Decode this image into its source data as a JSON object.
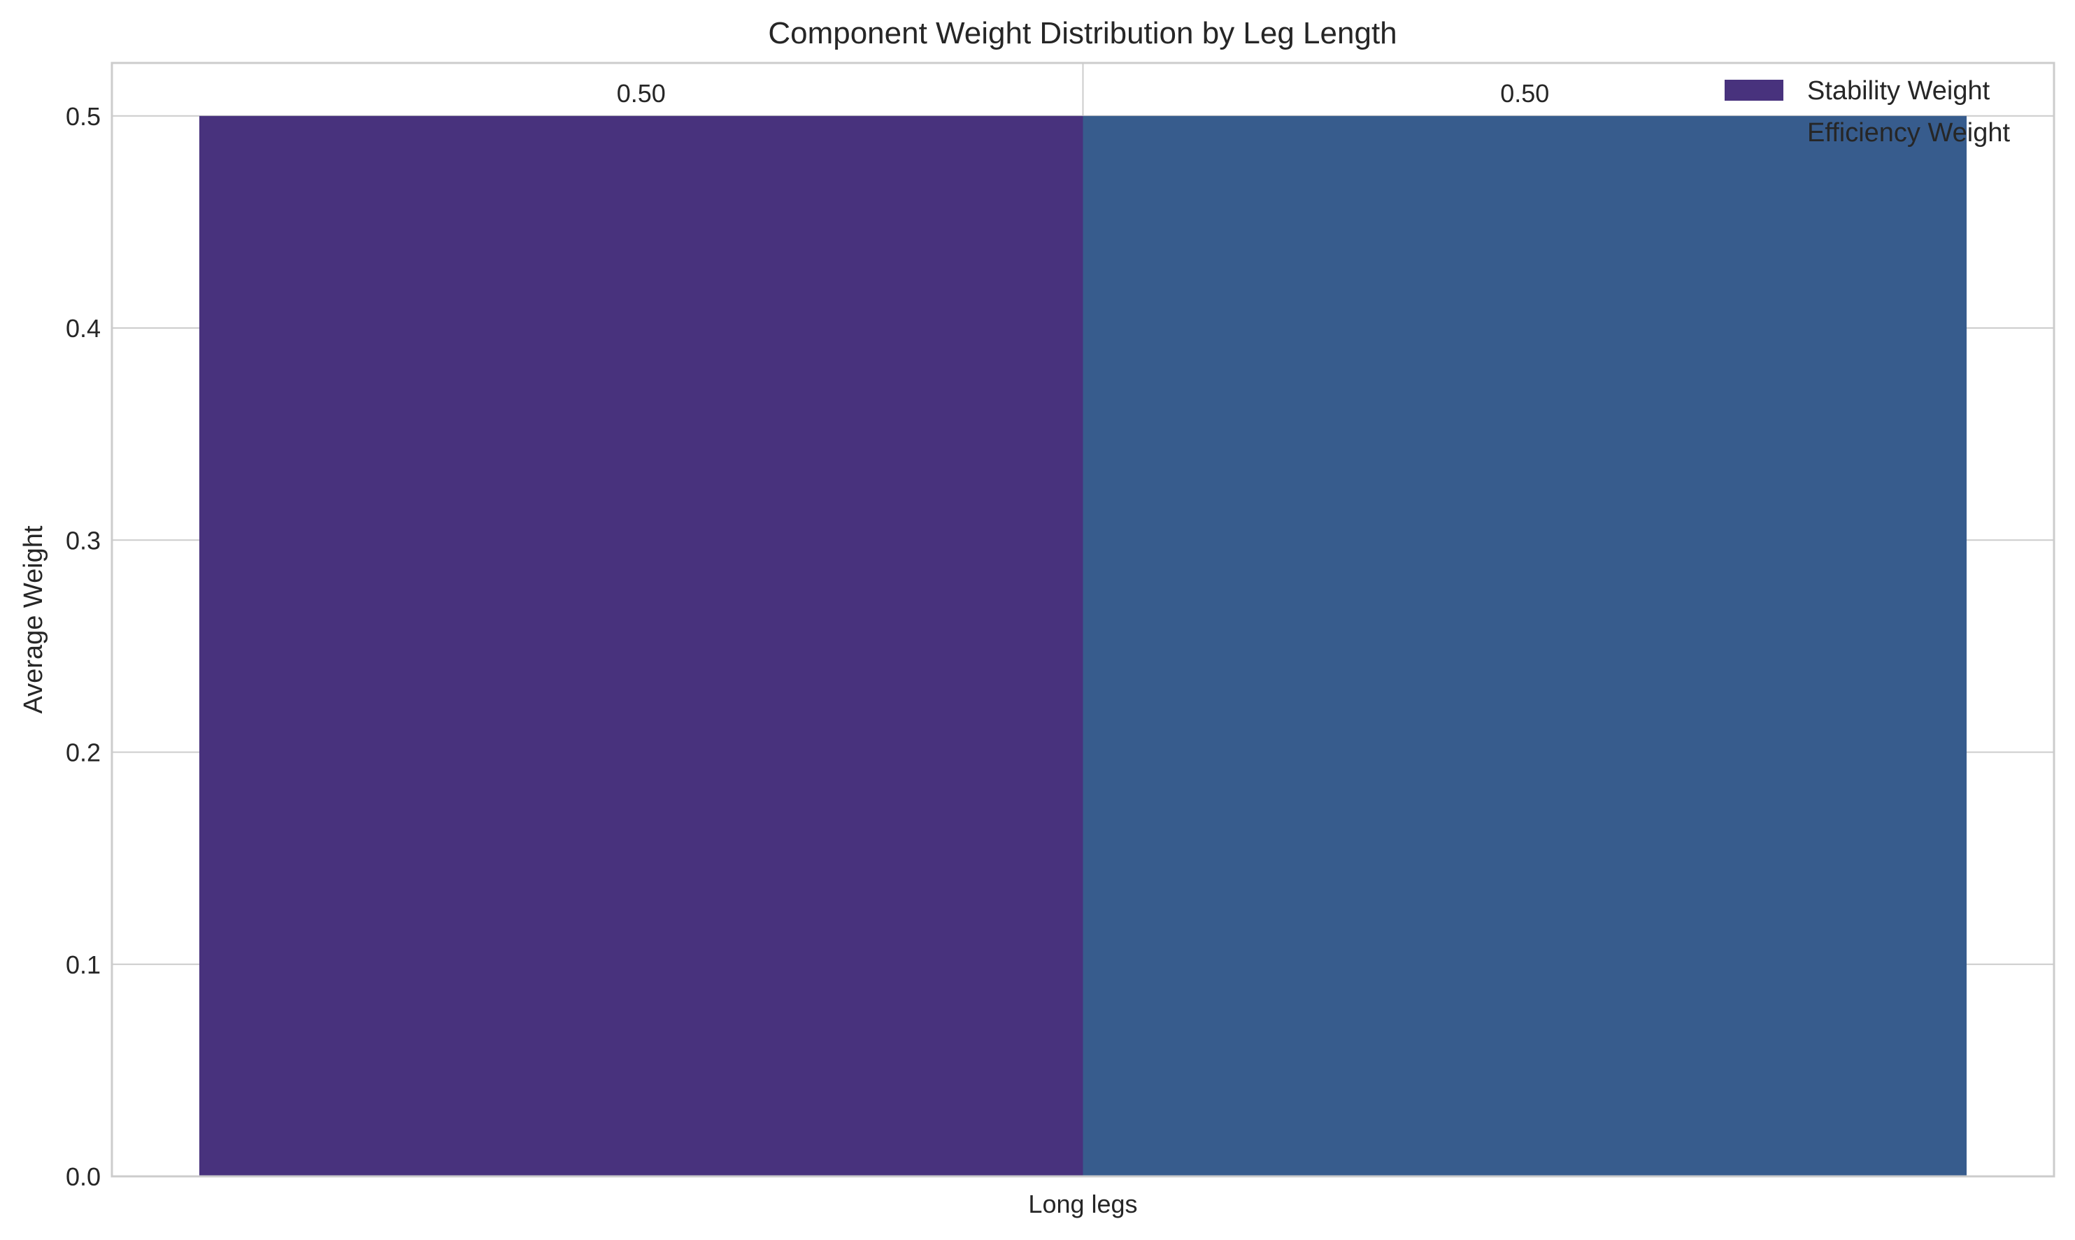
{
  "chart_data": {
    "type": "bar",
    "title": "Component Weight Distribution by Leg Length",
    "xlabel": "",
    "ylabel": "Average Weight",
    "categories": [
      "Long legs"
    ],
    "series": [
      {
        "name": "Stability Weight",
        "values": [
          0.5
        ],
        "color": "#48327d",
        "data_labels": [
          "0.50"
        ]
      },
      {
        "name": "Efficiency Weight",
        "values": [
          0.5
        ],
        "color": "#375c8d",
        "data_labels": [
          "0.50"
        ]
      }
    ],
    "ylim": [
      0,
      0.525
    ],
    "yticks": [
      0.0,
      0.1,
      0.2,
      0.3,
      0.4,
      0.5
    ],
    "ytick_labels": [
      "0.0",
      "0.1",
      "0.2",
      "0.3",
      "0.4",
      "0.5"
    ],
    "grid": true,
    "legend": {
      "position": "top-right",
      "entries": [
        "Stability Weight",
        "Efficiency Weight"
      ]
    }
  }
}
